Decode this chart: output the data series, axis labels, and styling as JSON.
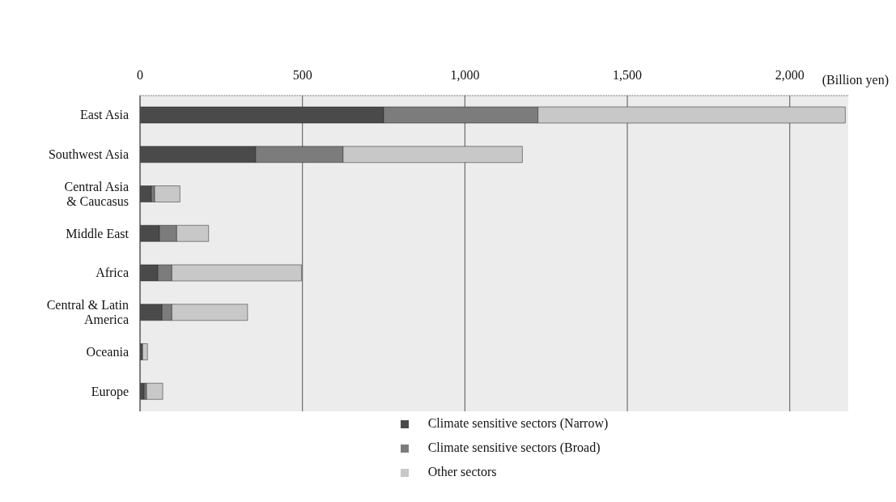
{
  "chart_data": {
    "type": "bar",
    "orientation": "horizontal",
    "stacked": true,
    "xlabel": "(Billion yen)",
    "categories": [
      "East Asia",
      "Southwest Asia",
      "Central Asia\n& Caucasus",
      "Middle East",
      "Africa",
      "Central & Latin\nAmerica",
      "Oceania",
      "Europe"
    ],
    "series": [
      {
        "name": "Climate sensitive sectors (Narrow)",
        "color": "#4a4a4a",
        "values": [
          750,
          356,
          35,
          60,
          55,
          68,
          8,
          13
        ]
      },
      {
        "name": "Climate sensitive sectors (Broad)",
        "color": "#7c7c7c",
        "values": [
          475,
          269,
          10,
          53,
          43,
          30,
          null,
          7
        ]
      },
      {
        "name": "Other sectors",
        "color": "#c8c8c8",
        "values": [
          946,
          552,
          78,
          98,
          399,
          233,
          15,
          50
        ]
      }
    ],
    "xlim": [
      0,
      2180
    ],
    "xticks": [
      0,
      500,
      {
        "value": 1000,
        "label": "1,000"
      },
      {
        "value": 1500,
        "label": "1,500"
      },
      {
        "value": 2000,
        "label": "2,000"
      }
    ],
    "grid": "x",
    "legend": "bottom"
  }
}
